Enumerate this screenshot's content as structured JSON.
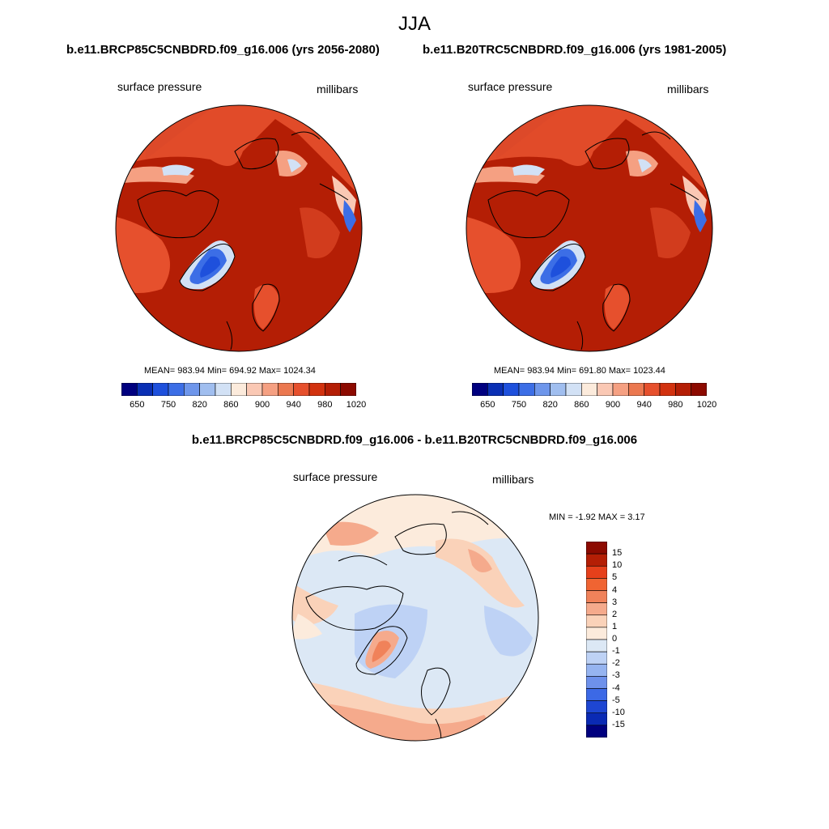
{
  "figure": {
    "title": "JJA"
  },
  "panels": [
    {
      "title": "b.e11.BRCP85C5CNBDRD.f09_g16.006 (yrs 2056-2080)",
      "variable": "surface pressure",
      "units": "millibars",
      "stats": "MEAN= 983.94  Min= 694.92  Max= 1024.34"
    },
    {
      "title": "b.e11.B20TRC5CNBDRD.f09_g16.006 (yrs 1981-2005)",
      "variable": "surface pressure",
      "units": "millibars",
      "stats": "MEAN= 983.94  Min= 691.80  Max= 1023.44"
    },
    {
      "title": "b.e11.BRCP85C5CNBDRD.f09_g16.006 - b.e11.B20TRC5CNBDRD.f09_g16.006",
      "variable": "surface pressure",
      "units": "millibars",
      "stats": "MIN =  -1.92 MAX =   3.17"
    }
  ],
  "colorbars": {
    "absolute": {
      "labels": [
        "650",
        "750",
        "820",
        "860",
        "900",
        "940",
        "980",
        "1020"
      ],
      "colors": [
        "#00007f",
        "#0a2fb4",
        "#1e50dc",
        "#3c6ee6",
        "#6e96eb",
        "#a0beef",
        "#d2e1f5",
        "#fcebdc",
        "#fac8b4",
        "#f5a082",
        "#eb7850",
        "#e6502d",
        "#d2320f",
        "#b41e05",
        "#8c0a00"
      ]
    },
    "difference": {
      "labels": [
        "15",
        "10",
        "5",
        "4",
        "3",
        "2",
        "1",
        "0",
        "-1",
        "-2",
        "-3",
        "-4",
        "-5",
        "-10",
        "-15"
      ],
      "colors": [
        "#8c0a00",
        "#b41e05",
        "#e6401b",
        "#f06432",
        "#f0825a",
        "#f5aa8c",
        "#fad2b9",
        "#fcebdc",
        "#dce8f5",
        "#bed2f5",
        "#96b4f0",
        "#6e91eb",
        "#3c69e6",
        "#1e46d2",
        "#0a2ab4",
        "#00007f"
      ]
    }
  }
}
